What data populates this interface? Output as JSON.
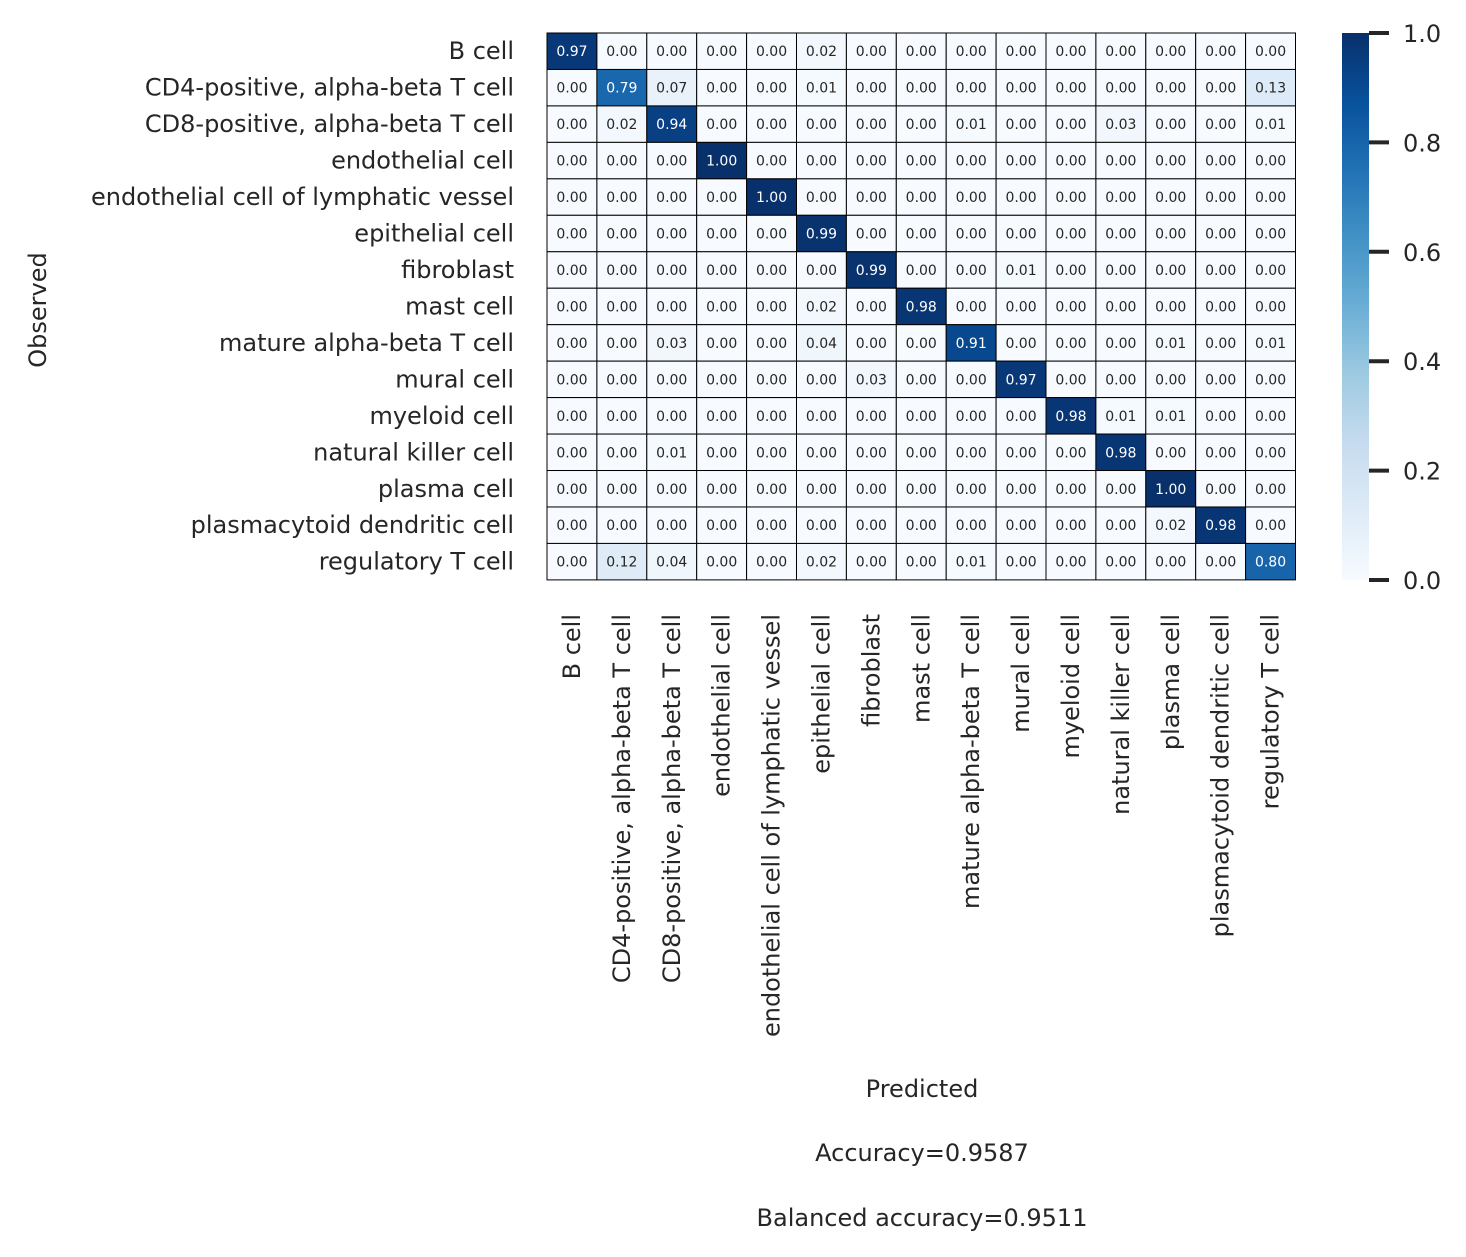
{
  "chart_data": {
    "type": "heatmap",
    "xlabel": "Predicted",
    "ylabel": "Observed",
    "categories": [
      "B cell",
      "CD4-positive, alpha-beta T cell",
      "CD8-positive, alpha-beta T cell",
      "endothelial cell",
      "endothelial cell of lymphatic vessel",
      "epithelial cell",
      "fibroblast",
      "mast cell",
      "mature alpha-beta T cell",
      "mural cell",
      "myeloid cell",
      "natural killer cell",
      "plasma cell",
      "plasmacytoid dendritic cell",
      "regulatory T cell"
    ],
    "values": [
      [
        0.97,
        0.0,
        0.0,
        0.0,
        0.0,
        0.02,
        0.0,
        0.0,
        0.0,
        0.0,
        0.0,
        0.0,
        0.0,
        0.0,
        0.0
      ],
      [
        0.0,
        0.79,
        0.07,
        0.0,
        0.0,
        0.01,
        0.0,
        0.0,
        0.0,
        0.0,
        0.0,
        0.0,
        0.0,
        0.0,
        0.13
      ],
      [
        0.0,
        0.02,
        0.94,
        0.0,
        0.0,
        0.0,
        0.0,
        0.0,
        0.01,
        0.0,
        0.0,
        0.03,
        0.0,
        0.0,
        0.01
      ],
      [
        0.0,
        0.0,
        0.0,
        1.0,
        0.0,
        0.0,
        0.0,
        0.0,
        0.0,
        0.0,
        0.0,
        0.0,
        0.0,
        0.0,
        0.0
      ],
      [
        0.0,
        0.0,
        0.0,
        0.0,
        1.0,
        0.0,
        0.0,
        0.0,
        0.0,
        0.0,
        0.0,
        0.0,
        0.0,
        0.0,
        0.0
      ],
      [
        0.0,
        0.0,
        0.0,
        0.0,
        0.0,
        0.99,
        0.0,
        0.0,
        0.0,
        0.0,
        0.0,
        0.0,
        0.0,
        0.0,
        0.0
      ],
      [
        0.0,
        0.0,
        0.0,
        0.0,
        0.0,
        0.0,
        0.99,
        0.0,
        0.0,
        0.01,
        0.0,
        0.0,
        0.0,
        0.0,
        0.0
      ],
      [
        0.0,
        0.0,
        0.0,
        0.0,
        0.0,
        0.02,
        0.0,
        0.98,
        0.0,
        0.0,
        0.0,
        0.0,
        0.0,
        0.0,
        0.0
      ],
      [
        0.0,
        0.0,
        0.03,
        0.0,
        0.0,
        0.04,
        0.0,
        0.0,
        0.91,
        0.0,
        0.0,
        0.0,
        0.01,
        0.0,
        0.01
      ],
      [
        0.0,
        0.0,
        0.0,
        0.0,
        0.0,
        0.0,
        0.03,
        0.0,
        0.0,
        0.97,
        0.0,
        0.0,
        0.0,
        0.0,
        0.0
      ],
      [
        0.0,
        0.0,
        0.0,
        0.0,
        0.0,
        0.0,
        0.0,
        0.0,
        0.0,
        0.0,
        0.98,
        0.01,
        0.01,
        0.0,
        0.0
      ],
      [
        0.0,
        0.0,
        0.01,
        0.0,
        0.0,
        0.0,
        0.0,
        0.0,
        0.0,
        0.0,
        0.0,
        0.98,
        0.0,
        0.0,
        0.0
      ],
      [
        0.0,
        0.0,
        0.0,
        0.0,
        0.0,
        0.0,
        0.0,
        0.0,
        0.0,
        0.0,
        0.0,
        0.0,
        1.0,
        0.0,
        0.0
      ],
      [
        0.0,
        0.0,
        0.0,
        0.0,
        0.0,
        0.0,
        0.0,
        0.0,
        0.0,
        0.0,
        0.0,
        0.0,
        0.02,
        0.98,
        0.0
      ],
      [
        0.0,
        0.12,
        0.04,
        0.0,
        0.0,
        0.02,
        0.0,
        0.0,
        0.01,
        0.0,
        0.0,
        0.0,
        0.0,
        0.0,
        0.8
      ]
    ],
    "colorbar": {
      "colormap": "Blues",
      "range": [
        0.0,
        1.0
      ],
      "ticks": [
        "0.0",
        "0.2",
        "0.4",
        "0.6",
        "0.8",
        "1.0"
      ]
    },
    "grid": true,
    "accuracy_text": "Accuracy=0.9587",
    "balanced_accuracy_text": "Balanced accuracy=0.9511"
  }
}
